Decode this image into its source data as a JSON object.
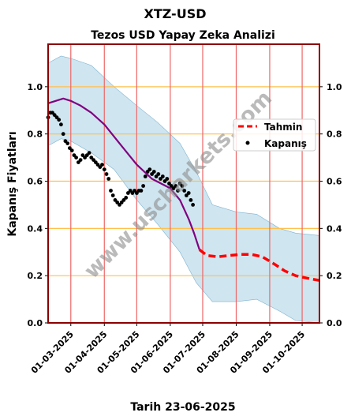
{
  "chart_data": {
    "type": "line",
    "title": "XTZ-USD",
    "subtitle": "Tezos USD Yapay Zeka Analizi",
    "xlabel": "Tarih 23-06-2025",
    "ylabel": "Kapanış Fiyatları",
    "ylim": [
      0.0,
      1.18
    ],
    "xlim": [
      "2025-02-08",
      "2025-10-17"
    ],
    "y_ticks": [
      "0.0",
      "0.2",
      "0.4",
      "0.6",
      "0.8",
      "1.0"
    ],
    "x_ticks": [
      "01-03-2025",
      "01-04-2025",
      "01-05-2025",
      "01-06-2025",
      "01-07-2025",
      "01-08-2025",
      "01-09-2025",
      "01-10-2025"
    ],
    "grid": "horizontal orange lines, vertical red lines at month starts",
    "legend_position": "right, upper-middle",
    "watermark": "www.uscharkets.com",
    "colors": {
      "closing": "#000000",
      "model_line": "#800080",
      "forecast": "#ff0000",
      "band": "#a8cfe3",
      "border": "#8b0000",
      "hgrid": "#ffc04d",
      "vgrid": "#ee6666",
      "watermark": "#8c8c8c"
    },
    "series": [
      {
        "name": "Kapanış",
        "style": "dots",
        "points": [
          [
            "2025-02-08",
            0.87
          ],
          [
            "2025-02-10",
            0.89
          ],
          [
            "2025-02-12",
            0.89
          ],
          [
            "2025-02-14",
            0.88
          ],
          [
            "2025-02-16",
            0.87
          ],
          [
            "2025-02-18",
            0.86
          ],
          [
            "2025-02-20",
            0.84
          ],
          [
            "2025-02-22",
            0.8
          ],
          [
            "2025-02-24",
            0.77
          ],
          [
            "2025-02-26",
            0.76
          ],
          [
            "2025-02-28",
            0.74
          ],
          [
            "2025-03-02",
            0.73
          ],
          [
            "2025-03-04",
            0.71
          ],
          [
            "2025-03-06",
            0.7
          ],
          [
            "2025-03-08",
            0.68
          ],
          [
            "2025-03-10",
            0.69
          ],
          [
            "2025-03-12",
            0.71
          ],
          [
            "2025-03-14",
            0.7
          ],
          [
            "2025-03-16",
            0.71
          ],
          [
            "2025-03-18",
            0.72
          ],
          [
            "2025-03-20",
            0.7
          ],
          [
            "2025-03-22",
            0.69
          ],
          [
            "2025-03-24",
            0.68
          ],
          [
            "2025-03-26",
            0.67
          ],
          [
            "2025-03-28",
            0.66
          ],
          [
            "2025-03-30",
            0.67
          ],
          [
            "2025-04-01",
            0.65
          ],
          [
            "2025-04-03",
            0.63
          ],
          [
            "2025-04-05",
            0.61
          ],
          [
            "2025-04-07",
            0.56
          ],
          [
            "2025-04-09",
            0.54
          ],
          [
            "2025-04-11",
            0.52
          ],
          [
            "2025-04-13",
            0.51
          ],
          [
            "2025-04-15",
            0.5
          ],
          [
            "2025-04-17",
            0.51
          ],
          [
            "2025-04-19",
            0.52
          ],
          [
            "2025-04-21",
            0.53
          ],
          [
            "2025-04-23",
            0.55
          ],
          [
            "2025-04-25",
            0.56
          ],
          [
            "2025-04-27",
            0.55
          ],
          [
            "2025-04-29",
            0.56
          ],
          [
            "2025-05-01",
            0.55
          ],
          [
            "2025-05-03",
            0.56
          ],
          [
            "2025-05-05",
            0.56
          ],
          [
            "2025-05-07",
            0.58
          ],
          [
            "2025-05-09",
            0.62
          ],
          [
            "2025-05-11",
            0.64
          ],
          [
            "2025-05-13",
            0.65
          ],
          [
            "2025-05-15",
            0.63
          ],
          [
            "2025-05-17",
            0.64
          ],
          [
            "2025-05-19",
            0.62
          ],
          [
            "2025-05-21",
            0.63
          ],
          [
            "2025-05-23",
            0.61
          ],
          [
            "2025-05-25",
            0.62
          ],
          [
            "2025-05-27",
            0.6
          ],
          [
            "2025-05-29",
            0.61
          ],
          [
            "2025-05-31",
            0.59
          ],
          [
            "2025-06-02",
            0.58
          ],
          [
            "2025-06-04",
            0.57
          ],
          [
            "2025-06-06",
            0.58
          ],
          [
            "2025-06-08",
            0.56
          ],
          [
            "2025-06-10",
            0.59
          ],
          [
            "2025-06-12",
            0.58
          ],
          [
            "2025-06-14",
            0.56
          ],
          [
            "2025-06-16",
            0.54
          ],
          [
            "2025-06-18",
            0.55
          ],
          [
            "2025-06-20",
            0.52
          ],
          [
            "2025-06-22",
            0.5
          ]
        ]
      },
      {
        "name": "",
        "style": "line",
        "points": [
          [
            "2025-02-08",
            0.93
          ],
          [
            "2025-02-15",
            0.94
          ],
          [
            "2025-02-22",
            0.95
          ],
          [
            "2025-03-01",
            0.94
          ],
          [
            "2025-03-10",
            0.92
          ],
          [
            "2025-03-20",
            0.89
          ],
          [
            "2025-04-01",
            0.84
          ],
          [
            "2025-04-15",
            0.76
          ],
          [
            "2025-05-01",
            0.67
          ],
          [
            "2025-05-15",
            0.61
          ],
          [
            "2025-06-01",
            0.57
          ],
          [
            "2025-06-10",
            0.52
          ],
          [
            "2025-06-18",
            0.44
          ],
          [
            "2025-06-23",
            0.38
          ],
          [
            "2025-06-28",
            0.31
          ]
        ]
      },
      {
        "name": "Tahmin",
        "style": "dashed",
        "points": [
          [
            "2025-06-28",
            0.31
          ],
          [
            "2025-07-05",
            0.285
          ],
          [
            "2025-07-15",
            0.28
          ],
          [
            "2025-07-25",
            0.285
          ],
          [
            "2025-08-05",
            0.29
          ],
          [
            "2025-08-15",
            0.29
          ],
          [
            "2025-08-25",
            0.28
          ],
          [
            "2025-09-05",
            0.25
          ],
          [
            "2025-09-15",
            0.22
          ],
          [
            "2025-09-25",
            0.2
          ],
          [
            "2025-10-05",
            0.19
          ],
          [
            "2025-10-17",
            0.18
          ]
        ]
      }
    ],
    "band": {
      "name": "",
      "dates": [
        "2025-02-08",
        "2025-02-20",
        "2025-03-01",
        "2025-03-20",
        "2025-04-10",
        "2025-05-01",
        "2025-05-20",
        "2025-06-10",
        "2025-06-25",
        "2025-07-10",
        "2025-08-01",
        "2025-08-20",
        "2025-09-10",
        "2025-09-25",
        "2025-10-17"
      ],
      "upper": [
        1.1,
        1.13,
        1.12,
        1.09,
        1.0,
        0.92,
        0.85,
        0.76,
        0.64,
        0.5,
        0.47,
        0.46,
        0.4,
        0.38,
        0.37
      ],
      "lower": [
        0.75,
        0.78,
        0.77,
        0.72,
        0.65,
        0.52,
        0.42,
        0.3,
        0.17,
        0.09,
        0.09,
        0.1,
        0.05,
        0.01,
        0.0
      ]
    }
  }
}
